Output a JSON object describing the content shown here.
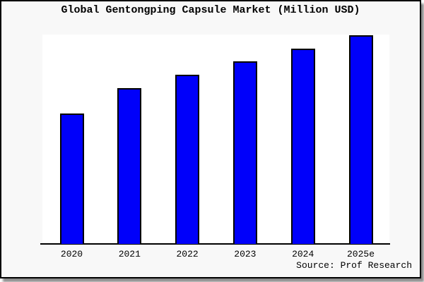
{
  "window": {
    "background": "#ffffff",
    "panel_background": "#f8f8f8"
  },
  "chart_data": {
    "type": "bar",
    "title": "Global Gentongping Capsule Market (Million USD)",
    "categories": [
      "2020",
      "2021",
      "2022",
      "2023",
      "2024",
      "2025e"
    ],
    "values": [
      62.7,
      74.9,
      81.3,
      87.8,
      93.7,
      100
    ],
    "value_axis": "unlabeled (no y-axis ticks or gridlines); values are relative estimates with tallest bar 2025e = 100",
    "xlabel": "",
    "ylabel": "",
    "grid": false,
    "legend": false,
    "bar_color": "#0000fa",
    "bar_border_color": "#000000",
    "source_note": "Source: Prof Research"
  }
}
